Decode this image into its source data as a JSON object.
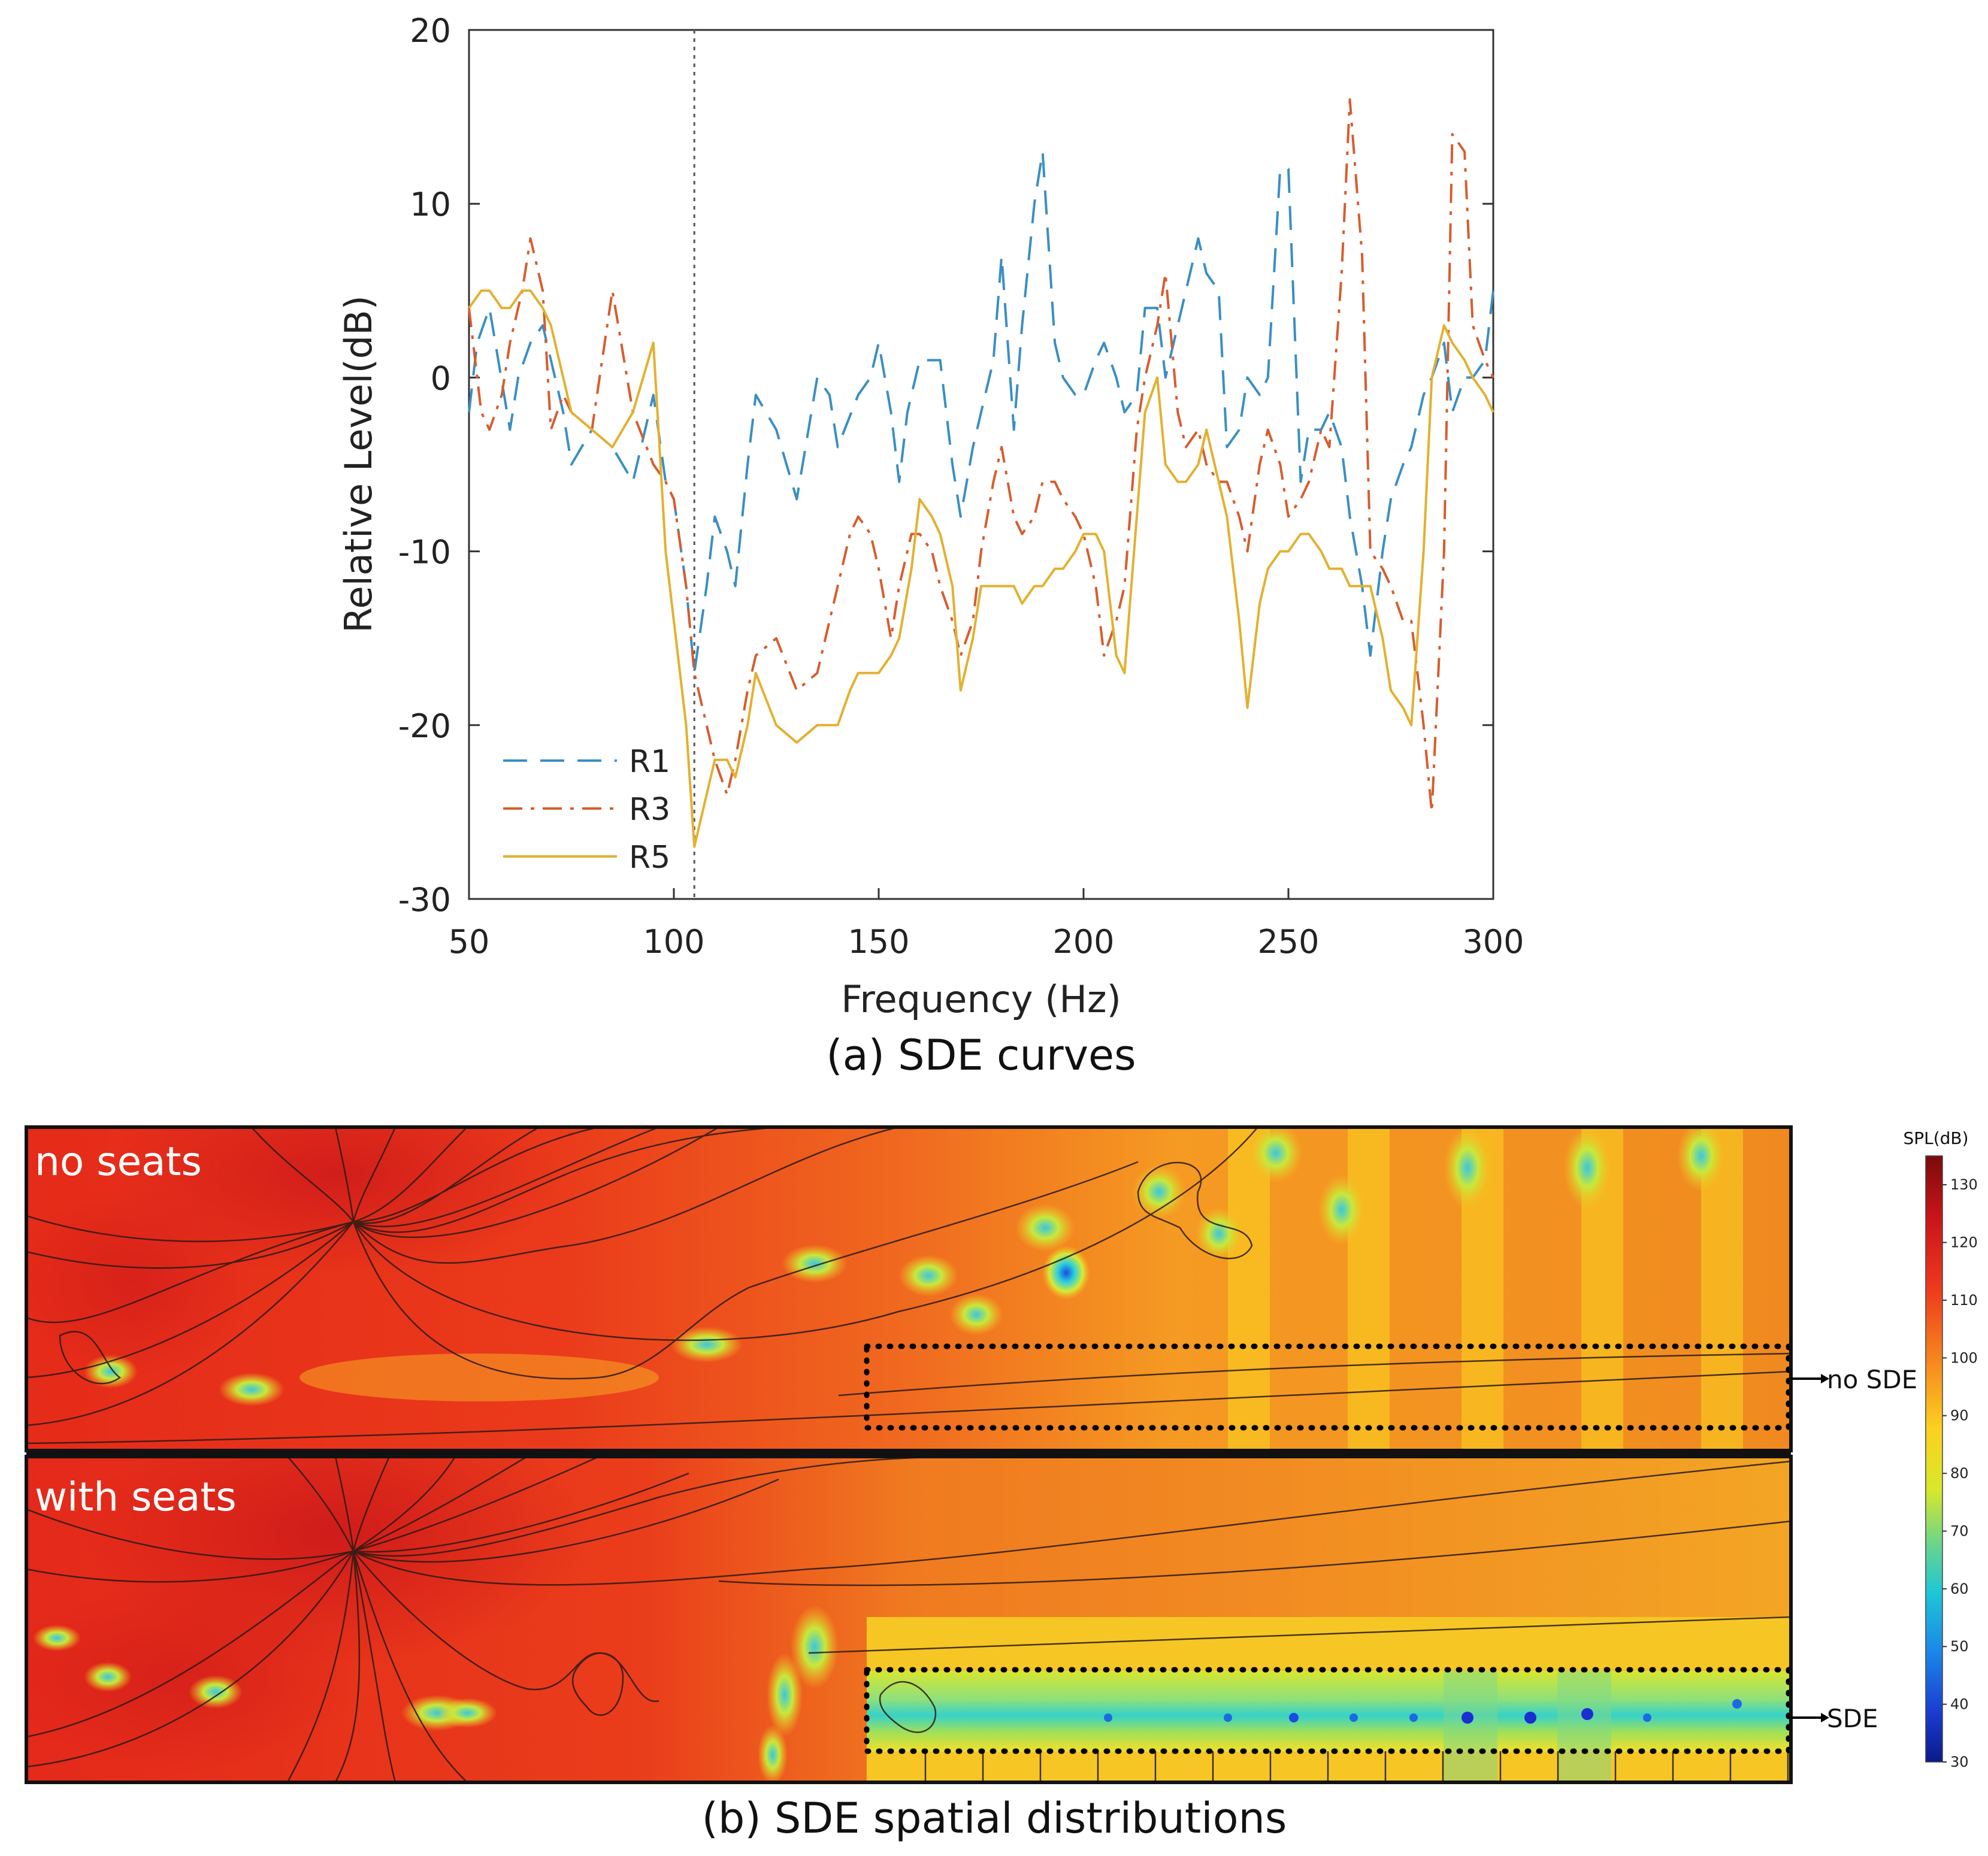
{
  "panel_a": {
    "caption": "(a) SDE curves",
    "chart_data": {
      "type": "line",
      "xlabel": "Frequency (Hz)",
      "ylabel": "Relative Level(dB)",
      "xlim": [
        50,
        300
      ],
      "ylim": [
        -30,
        20
      ],
      "xticks": [
        50,
        100,
        150,
        200,
        250,
        300
      ],
      "yticks": [
        -30,
        -20,
        -10,
        0,
        10,
        20
      ],
      "grid": false,
      "legend_position": "bottom-left",
      "vertical_marker": {
        "x": 105,
        "style": "dotted"
      },
      "series": [
        {
          "name": "R1",
          "color": "#3a8fc4",
          "dash": "dashed",
          "x": [
            50,
            52,
            55,
            60,
            62,
            65,
            68,
            70,
            73,
            75,
            80,
            85,
            90,
            95,
            98,
            100,
            103,
            105,
            108,
            110,
            113,
            115,
            118,
            120,
            125,
            130,
            135,
            138,
            140,
            145,
            148,
            150,
            153,
            155,
            157,
            160,
            163,
            165,
            168,
            170,
            173,
            175,
            178,
            180,
            183,
            185,
            188,
            190,
            193,
            195,
            198,
            200,
            203,
            205,
            208,
            210,
            213,
            215,
            218,
            220,
            223,
            225,
            228,
            230,
            233,
            235,
            238,
            240,
            243,
            245,
            248,
            250,
            253,
            255,
            258,
            260,
            263,
            265,
            268,
            270,
            273,
            275,
            278,
            280,
            283,
            285,
            288,
            290,
            293,
            295,
            298,
            300
          ],
          "values": [
            -2,
            2,
            4,
            -3,
            0,
            2,
            3,
            1,
            -2,
            -5,
            -3,
            -4,
            -6,
            -1,
            -6,
            -7,
            -12,
            -17,
            -12,
            -8,
            -10,
            -12,
            -5,
            -1,
            -3,
            -7,
            0,
            -1,
            -4,
            -1,
            0,
            2,
            -2,
            -6,
            -2,
            1,
            1,
            1,
            -5,
            -8,
            -4,
            -2,
            1,
            7,
            -3,
            3,
            10,
            13,
            2,
            0,
            -1,
            -1,
            1,
            2,
            0,
            -2,
            -1,
            4,
            4,
            0,
            3,
            5,
            8,
            6,
            5,
            -4,
            -3,
            0,
            -1,
            0,
            12,
            12,
            -6,
            -3,
            -3,
            -2,
            -4,
            -8,
            -12,
            -16,
            -10,
            -7,
            -5,
            -4,
            -1,
            0,
            2,
            -2,
            0,
            0,
            1,
            5
          ]
        },
        {
          "name": "R3",
          "color": "#d65d2e",
          "dash": "dashdot",
          "x": [
            50,
            53,
            55,
            58,
            60,
            63,
            65,
            68,
            70,
            73,
            75,
            80,
            85,
            90,
            95,
            98,
            100,
            103,
            105,
            108,
            110,
            113,
            115,
            118,
            120,
            125,
            130,
            135,
            140,
            143,
            145,
            148,
            150,
            153,
            155,
            158,
            160,
            163,
            165,
            168,
            170,
            173,
            175,
            178,
            180,
            183,
            185,
            188,
            190,
            193,
            195,
            198,
            200,
            203,
            205,
            208,
            210,
            213,
            215,
            218,
            220,
            223,
            225,
            228,
            230,
            233,
            235,
            238,
            240,
            243,
            245,
            248,
            250,
            253,
            255,
            258,
            260,
            263,
            265,
            268,
            270,
            273,
            275,
            278,
            280,
            283,
            285,
            288,
            290,
            293,
            295,
            298,
            300
          ],
          "values": [
            4,
            -2,
            -3,
            -1,
            2,
            5,
            8,
            5,
            -3,
            -1,
            -2,
            -3,
            5,
            -2,
            -5,
            -6,
            -7,
            -12,
            -17,
            -20,
            -22,
            -24,
            -22,
            -18,
            -16,
            -15,
            -18,
            -17,
            -12,
            -9,
            -8,
            -9,
            -11,
            -15,
            -12,
            -9,
            -9,
            -10,
            -12,
            -14,
            -16,
            -14,
            -10,
            -6,
            -4,
            -8,
            -9,
            -8,
            -6,
            -6,
            -7,
            -8,
            -9,
            -12,
            -16,
            -14,
            -12,
            -3,
            0,
            3,
            6,
            -2,
            -4,
            -3,
            -5,
            -6,
            -6,
            -8,
            -10,
            -5,
            -3,
            -5,
            -8,
            -7,
            -6,
            -3,
            -4,
            6,
            16,
            7,
            -10,
            -11,
            -12,
            -14,
            -14,
            -20,
            -25,
            -10,
            14,
            13,
            3,
            1,
            0
          ]
        },
        {
          "name": "R5",
          "color": "#e3b030",
          "dash": "solid",
          "x": [
            50,
            53,
            55,
            58,
            60,
            63,
            65,
            68,
            70,
            73,
            75,
            80,
            85,
            90,
            95,
            98,
            100,
            103,
            105,
            108,
            110,
            113,
            115,
            118,
            120,
            125,
            130,
            135,
            140,
            143,
            145,
            148,
            150,
            153,
            155,
            158,
            160,
            163,
            165,
            168,
            170,
            173,
            175,
            178,
            180,
            183,
            185,
            188,
            190,
            193,
            195,
            198,
            200,
            203,
            205,
            208,
            210,
            213,
            215,
            218,
            220,
            223,
            225,
            228,
            230,
            233,
            235,
            238,
            240,
            243,
            245,
            248,
            250,
            253,
            255,
            258,
            260,
            263,
            265,
            268,
            270,
            273,
            275,
            278,
            280,
            283,
            285,
            288,
            290,
            293,
            295,
            298,
            300
          ],
          "values": [
            4,
            5,
            5,
            4,
            4,
            5,
            5,
            4,
            3,
            0,
            -2,
            -3,
            -4,
            -2,
            2,
            -10,
            -14,
            -20,
            -27,
            -24,
            -22,
            -22,
            -23,
            -20,
            -17,
            -20,
            -21,
            -20,
            -20,
            -18,
            -17,
            -17,
            -17,
            -16,
            -15,
            -11,
            -7,
            -8,
            -9,
            -12,
            -18,
            -15,
            -12,
            -12,
            -12,
            -12,
            -13,
            -12,
            -12,
            -11,
            -11,
            -10,
            -9,
            -9,
            -10,
            -16,
            -17,
            -8,
            -2,
            0,
            -5,
            -6,
            -6,
            -5,
            -3,
            -6,
            -8,
            -14,
            -19,
            -13,
            -11,
            -10,
            -10,
            -9,
            -9,
            -10,
            -11,
            -11,
            -12,
            -12,
            -12,
            -15,
            -18,
            -19,
            -20,
            -10,
            0,
            3,
            2,
            1,
            0,
            -1,
            -2
          ]
        }
      ]
    }
  },
  "panel_b": {
    "caption": "(b) SDE spatial distributions",
    "top_label": "no seats",
    "bottom_label": "with seats",
    "top_marker": "no SDE",
    "bottom_marker": "SDE",
    "colorbar": {
      "title": "SPL(dB)",
      "ticks": [
        "130",
        "120",
        "110",
        "100",
        "90",
        "80",
        "70",
        "60",
        "50",
        "40",
        "30"
      ],
      "range": [
        30,
        135
      ]
    }
  }
}
